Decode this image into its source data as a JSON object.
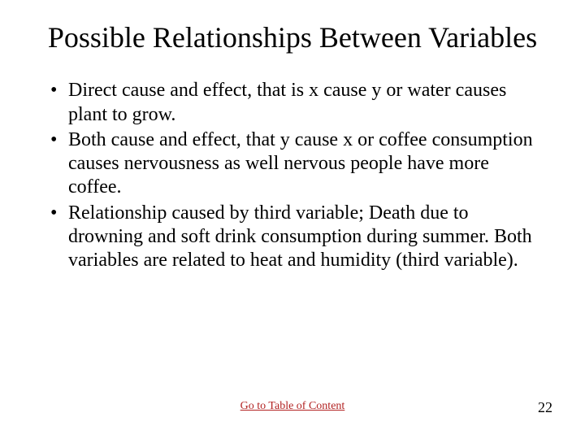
{
  "title": "Possible Relationships Between Variables",
  "bullets": [
    "Direct cause and effect, that is x cause y or water causes plant to grow.",
    "Both cause and effect, that y cause x or coffee consumption causes nervousness as well nervous people have more coffee.",
    "Relationship caused by third variable; Death due to drowning and soft drink consumption during summer. Both variables are related to heat and humidity (third variable)."
  ],
  "footer_link_label": "Go to Table of Content",
  "page_number": "22",
  "colors": {
    "link_color": "#b22222",
    "text_color": "#000000",
    "background": "#ffffff"
  }
}
